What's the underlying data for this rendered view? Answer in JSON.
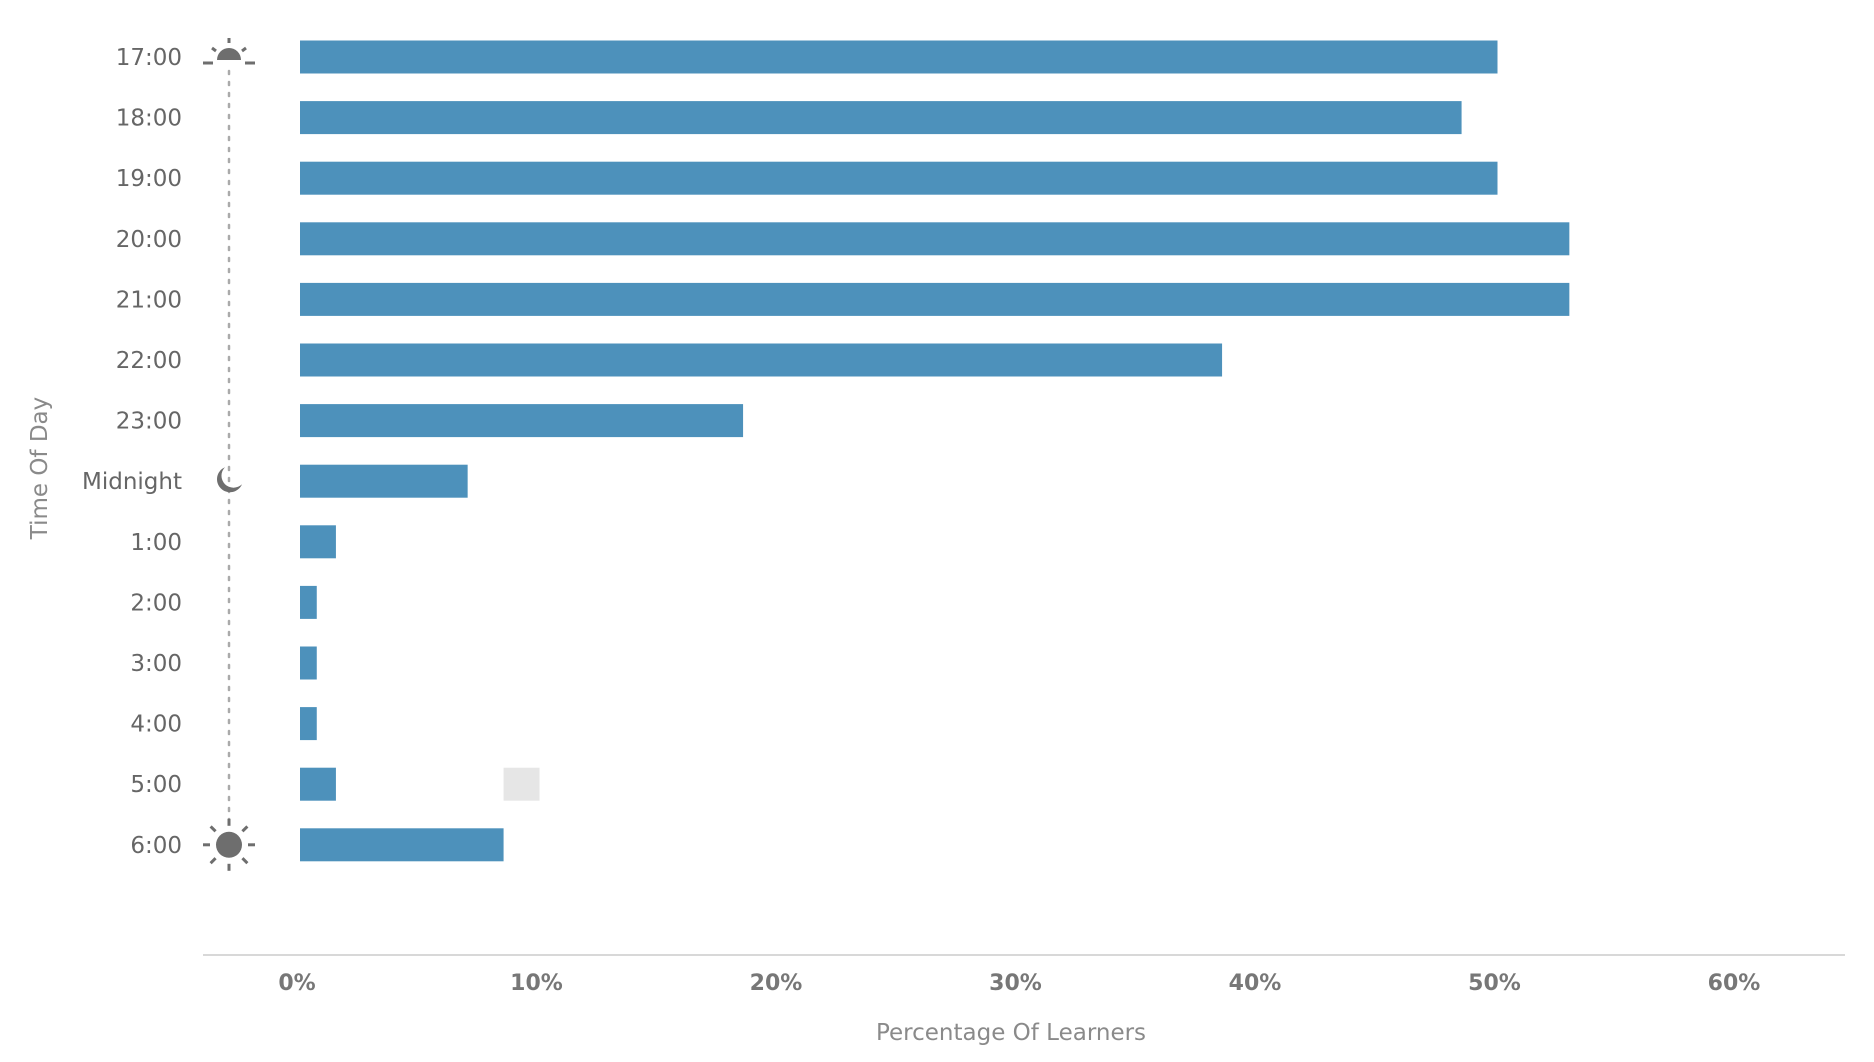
{
  "chart_data": {
    "type": "bar",
    "orientation": "horizontal",
    "title": "",
    "xlabel": "Percentage Of Learners",
    "ylabel": "Time Of Day",
    "xlim": [
      0,
      60
    ],
    "xticks": [
      "0%",
      "10%",
      "20%",
      "30%",
      "40%",
      "50%",
      "60%"
    ],
    "grid": false,
    "categories": [
      "17:00",
      "18:00",
      "19:00",
      "20:00",
      "21:00",
      "22:00",
      "23:00",
      "Midnight",
      "1:00",
      "2:00",
      "3:00",
      "4:00",
      "5:00",
      "6:00"
    ],
    "values": [
      50,
      48.5,
      50,
      53,
      53,
      38.5,
      18.5,
      7,
      1.5,
      0.7,
      0.7,
      0.7,
      1.5,
      8.5
    ],
    "series_color": "#4d91bb",
    "ghost_marker": {
      "category": "5:00",
      "from": 8.5,
      "to": 10,
      "color": "#e6e6e6"
    },
    "timeline_icons": [
      {
        "category": "17:00",
        "icon": "sunset-icon"
      },
      {
        "category": "Midnight",
        "icon": "moon-icon"
      },
      {
        "category": "6:00",
        "icon": "sunrise-icon"
      }
    ],
    "icon_color": "#6e6e6e",
    "axis_color": "#cccccc"
  }
}
